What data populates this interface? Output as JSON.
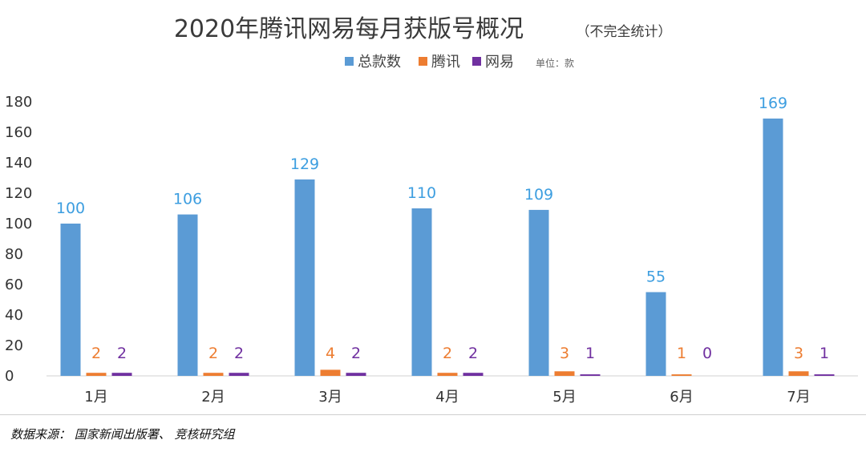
{
  "chart_data": {
    "type": "bar",
    "title": "2020年腾讯网易每月获版号概况",
    "subtitle": "（不完全统计）",
    "unit_note": "单位：款",
    "categories": [
      "1月",
      "2月",
      "3月",
      "4月",
      "5月",
      "6月",
      "7月"
    ],
    "series": [
      {
        "name": "总款数",
        "color": "#5b9bd5",
        "label_color": "#3d9ee0",
        "values": [
          100,
          106,
          129,
          110,
          109,
          55,
          169
        ]
      },
      {
        "name": "腾讯",
        "color": "#ed7d31",
        "label_color": "#ed7d31",
        "values": [
          2,
          2,
          4,
          2,
          3,
          1,
          3
        ]
      },
      {
        "name": "网易",
        "color": "#7030a0",
        "label_color": "#7030a0",
        "values": [
          2,
          2,
          2,
          2,
          1,
          0,
          1
        ]
      }
    ],
    "ylim": [
      0,
      180
    ],
    "yticks": [
      "0",
      "20",
      "40",
      "60",
      "80",
      "100",
      "120",
      "140",
      "160",
      "180"
    ],
    "grid": false,
    "legend_position": "top-center"
  },
  "footer": {
    "source": "数据来源： 国家新闻出版署、 竞核研究组"
  }
}
